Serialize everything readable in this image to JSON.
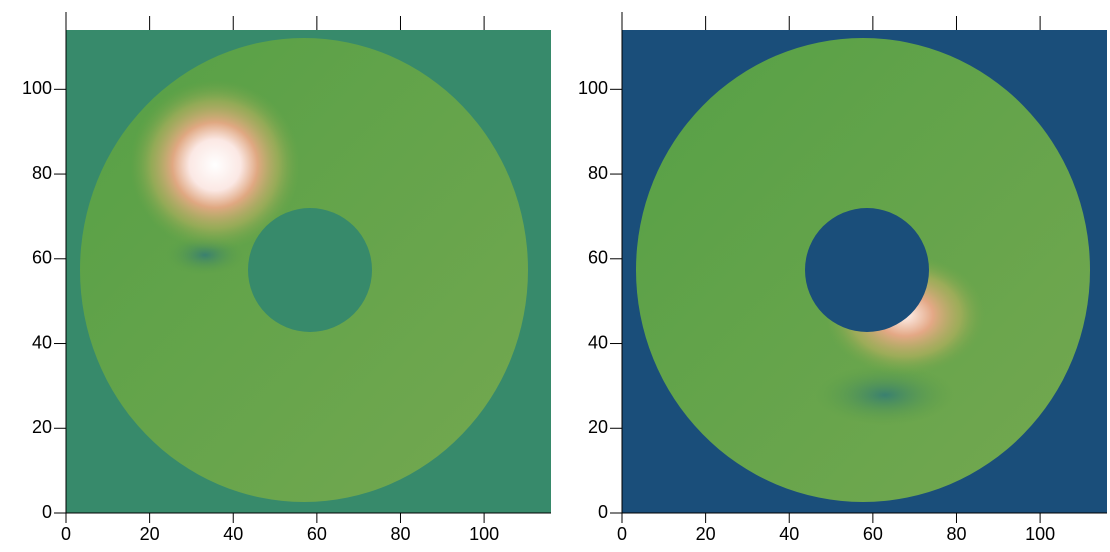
{
  "chart_data": [
    {
      "type": "image",
      "xlim": [
        0,
        116
      ],
      "ylim": [
        0,
        114
      ],
      "xticks": [
        0,
        20,
        40,
        60,
        80,
        100
      ],
      "yticks": [
        0,
        20,
        40,
        60,
        80,
        100
      ]
    },
    {
      "type": "image",
      "xlim": [
        0,
        116
      ],
      "ylim": [
        0,
        114
      ],
      "xticks": [
        0,
        20,
        40,
        60,
        80,
        100
      ],
      "yticks": [
        0,
        20,
        40,
        60,
        80,
        100
      ]
    }
  ]
}
